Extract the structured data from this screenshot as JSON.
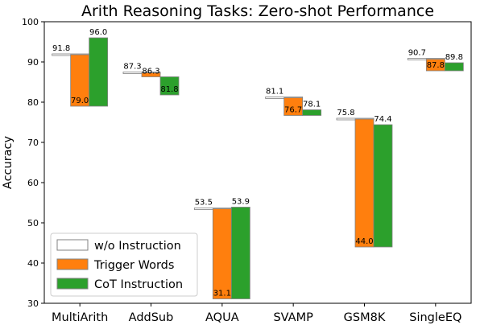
{
  "chart_data": {
    "type": "bar",
    "title": "Arith Reasoning Tasks: Zero-shot Performance",
    "ylabel": "Accuracy",
    "xlabel": "",
    "ylim": [
      30,
      100
    ],
    "yticks": [
      30,
      40,
      50,
      60,
      70,
      80,
      90,
      100
    ],
    "categories": [
      "MultiArith",
      "AddSub",
      "AQUA",
      "SVAMP",
      "GSM8K",
      "SingleEQ"
    ],
    "series": [
      {
        "name": "w/o Instruction",
        "values": [
          91.8,
          87.3,
          53.5,
          81.1,
          75.8,
          90.7
        ],
        "color": "#ffffff"
      },
      {
        "name": "Trigger Words",
        "values": [
          79.0,
          86.3,
          31.1,
          76.7,
          44.0,
          87.8
        ],
        "color": "#ff7f0e"
      },
      {
        "name": "CoT Instruction",
        "values": [
          96.0,
          81.8,
          53.9,
          78.1,
          74.4,
          89.8
        ],
        "color": "#2ca02c"
      }
    ],
    "value_labels": [
      [
        "91.8",
        "79.0",
        "96.0"
      ],
      [
        "87.3",
        "86.3",
        "81.8"
      ],
      [
        "53.5",
        "31.1",
        "53.9"
      ],
      [
        "81.1",
        "76.7",
        "78.1"
      ],
      [
        "75.8",
        "44.0",
        "74.4"
      ],
      [
        "90.7",
        "87.8",
        "89.8"
      ]
    ],
    "legend_position": "lower-left",
    "grid": false
  }
}
